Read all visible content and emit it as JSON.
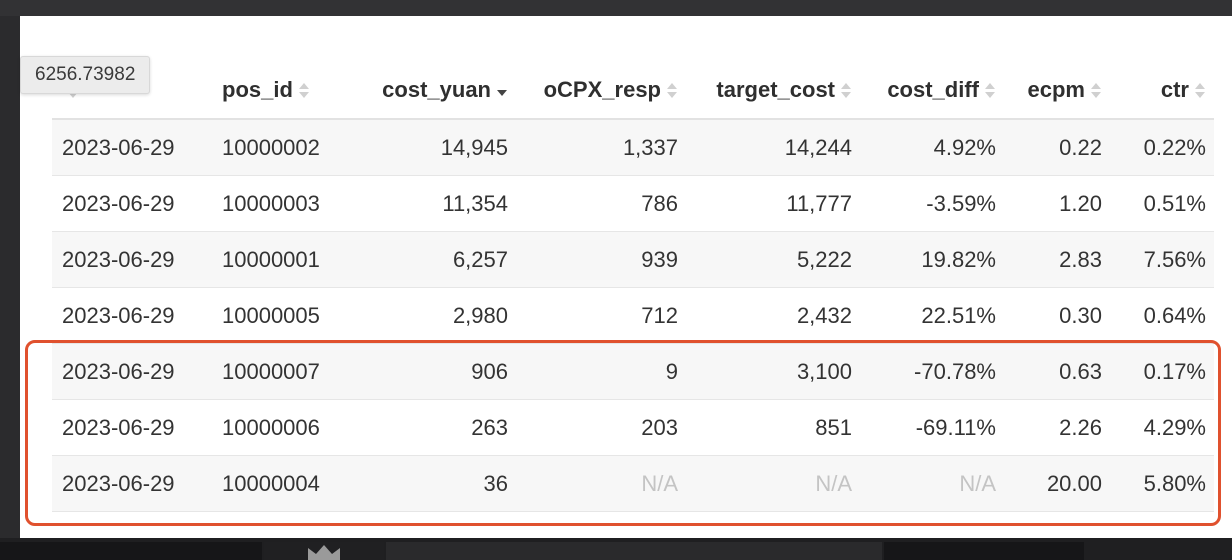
{
  "tooltip": {
    "text": "6256.73982"
  },
  "table": {
    "columns": [
      {
        "label": "",
        "sort": "none"
      },
      {
        "label": "pos_id",
        "sort": "none"
      },
      {
        "label": "cost_yuan",
        "sort": "desc"
      },
      {
        "label": "oCPX_resp",
        "sort": "none"
      },
      {
        "label": "target_cost",
        "sort": "none"
      },
      {
        "label": "cost_diff",
        "sort": "none"
      },
      {
        "label": "ecpm",
        "sort": "none"
      },
      {
        "label": "ctr",
        "sort": "none"
      }
    ],
    "rows": [
      [
        "2023-06-29",
        "10000002",
        "14,945",
        "1,337",
        "14,244",
        "4.92%",
        "0.22",
        "0.22%"
      ],
      [
        "2023-06-29",
        "10000003",
        "11,354",
        "786",
        "11,777",
        "-3.59%",
        "1.20",
        "0.51%"
      ],
      [
        "2023-06-29",
        "10000001",
        "6,257",
        "939",
        "5,222",
        "19.82%",
        "2.83",
        "7.56%"
      ],
      [
        "2023-06-29",
        "10000005",
        "2,980",
        "712",
        "2,432",
        "22.51%",
        "0.30",
        "0.64%"
      ],
      [
        "2023-06-29",
        "10000007",
        "906",
        "9",
        "3,100",
        "-70.78%",
        "0.63",
        "0.17%"
      ],
      [
        "2023-06-29",
        "10000006",
        "263",
        "203",
        "851",
        "-69.11%",
        "2.26",
        "4.29%"
      ],
      [
        "2023-06-29",
        "10000004",
        "36",
        "N/A",
        "N/A",
        "N/A",
        "20.00",
        "5.80%"
      ]
    ]
  },
  "colors": {
    "highlight": "#e0512e",
    "na_text": "#c4c4c4",
    "stripe": "#f7f7f7"
  }
}
